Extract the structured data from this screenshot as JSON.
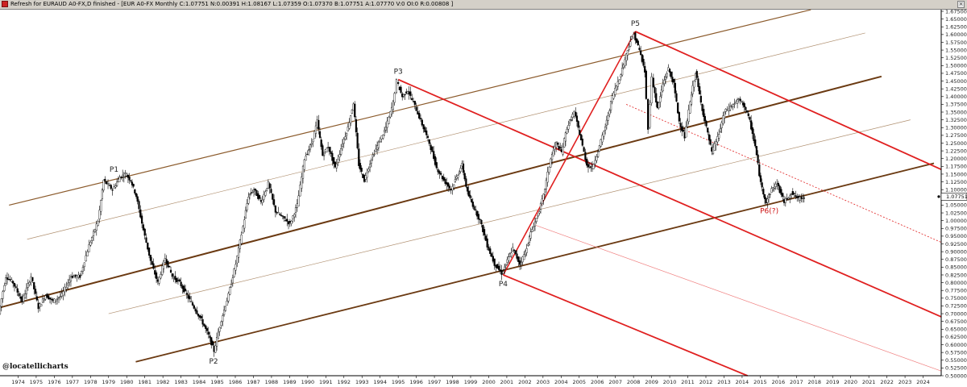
{
  "window": {
    "title": "Refresh for EURAUD A0-FX,D finished - [EUR A0-FX Monthly C:1.07751 N:0.00391 H:1.08167 L:1.07359 O:1.07370 B:1.07751 A:1.07770 V:0 OI:0 R:0.00808 ]"
  },
  "watermark": "@locatellicharts",
  "chart_data": {
    "type": "line",
    "symbol": "EUR A0-FX",
    "timeframe": "Monthly",
    "quote": {
      "C": 1.07751,
      "N": 0.00391,
      "H": 1.08167,
      "L": 1.07359,
      "O": 1.0737,
      "B": 1.07751,
      "A": 1.0777,
      "V": 0,
      "OI": 0,
      "R": 0.00808
    },
    "last_value_label": "1.07751",
    "xlim": [
      1973.0,
      2025.0
    ],
    "ylim": [
      0.5,
      1.675
    ],
    "x_ticks": [
      "1974",
      "1975",
      "1976",
      "1977",
      "1978",
      "1979",
      "1980",
      "1981",
      "1982",
      "1983",
      "1984",
      "1985",
      "1986",
      "1987",
      "1988",
      "1989",
      "1990",
      "1991",
      "1992",
      "1993",
      "1994",
      "1995",
      "1996",
      "1997",
      "1998",
      "1999",
      "2000",
      "2001",
      "2002",
      "2003",
      "2004",
      "2005",
      "2006",
      "2007",
      "2008",
      "2009",
      "2010",
      "2011",
      "2012",
      "2013",
      "2014",
      "2015",
      "2016",
      "2017",
      "2018",
      "2019",
      "2020",
      "2021",
      "2022",
      "2023",
      "2024"
    ],
    "y_ticks": [
      "1.67500",
      "1.65000",
      "1.62500",
      "1.60000",
      "1.57500",
      "1.55000",
      "1.52500",
      "1.50000",
      "1.47500",
      "1.45000",
      "1.42500",
      "1.40000",
      "1.37500",
      "1.35000",
      "1.32500",
      "1.30000",
      "1.27500",
      "1.25000",
      "1.22500",
      "1.20000",
      "1.17500",
      "1.15000",
      "1.12500",
      "1.10000",
      "1.07500",
      "1.05000",
      "1.02500",
      "1.00000",
      "0.97500",
      "0.95000",
      "0.92500",
      "0.90000",
      "0.87500",
      "0.85000",
      "0.82500",
      "0.80000",
      "0.77500",
      "0.75000",
      "0.72500",
      "0.70000",
      "0.67500",
      "0.65000",
      "0.62500",
      "0.60000",
      "0.57500",
      "0.55000",
      "0.52500",
      "0.50000"
    ],
    "pivots": [
      {
        "label": "P1",
        "x": 1979.3,
        "y": 1.14
      },
      {
        "label": "P2",
        "x": 1984.8,
        "y": 0.575
      },
      {
        "label": "P3",
        "x": 1995.0,
        "y": 1.455
      },
      {
        "label": "P4",
        "x": 2000.8,
        "y": 0.825
      },
      {
        "label": "P5",
        "x": 2008.1,
        "y": 1.61
      },
      {
        "label": "P6(?)",
        "x": 2015.5,
        "y": 1.06
      }
    ],
    "price_path": [
      [
        1973.0,
        0.7
      ],
      [
        1973.4,
        0.82
      ],
      [
        1973.8,
        0.8
      ],
      [
        1974.3,
        0.74
      ],
      [
        1974.8,
        0.82
      ],
      [
        1975.2,
        0.72
      ],
      [
        1975.6,
        0.76
      ],
      [
        1976.0,
        0.74
      ],
      [
        1976.5,
        0.76
      ],
      [
        1977.0,
        0.82
      ],
      [
        1977.5,
        0.82
      ],
      [
        1978.0,
        0.92
      ],
      [
        1978.5,
        1.0
      ],
      [
        1978.8,
        1.13
      ],
      [
        1979.3,
        1.1
      ],
      [
        1979.7,
        1.14
      ],
      [
        1980.0,
        1.15
      ],
      [
        1980.3,
        1.13
      ],
      [
        1980.6,
        1.08
      ],
      [
        1981.0,
        0.97
      ],
      [
        1981.4,
        0.87
      ],
      [
        1981.8,
        0.8
      ],
      [
        1982.2,
        0.88
      ],
      [
        1982.6,
        0.82
      ],
      [
        1983.0,
        0.8
      ],
      [
        1983.4,
        0.76
      ],
      [
        1983.8,
        0.72
      ],
      [
        1984.2,
        0.68
      ],
      [
        1984.6,
        0.63
      ],
      [
        1984.9,
        0.58
      ],
      [
        1985.3,
        0.68
      ],
      [
        1985.7,
        0.76
      ],
      [
        1986.1,
        0.86
      ],
      [
        1986.5,
        0.98
      ],
      [
        1986.8,
        1.08
      ],
      [
        1987.1,
        1.1
      ],
      [
        1987.5,
        1.06
      ],
      [
        1987.9,
        1.12
      ],
      [
        1988.3,
        1.03
      ],
      [
        1988.7,
        1.01
      ],
      [
        1989.1,
        0.99
      ],
      [
        1989.5,
        1.05
      ],
      [
        1989.9,
        1.2
      ],
      [
        1990.3,
        1.25
      ],
      [
        1990.6,
        1.32
      ],
      [
        1990.9,
        1.21
      ],
      [
        1991.2,
        1.24
      ],
      [
        1991.6,
        1.17
      ],
      [
        1992.0,
        1.25
      ],
      [
        1992.3,
        1.3
      ],
      [
        1992.6,
        1.38
      ],
      [
        1992.9,
        1.18
      ],
      [
        1993.2,
        1.13
      ],
      [
        1993.6,
        1.2
      ],
      [
        1994.0,
        1.25
      ],
      [
        1994.4,
        1.3
      ],
      [
        1994.8,
        1.38
      ],
      [
        1995.0,
        1.45
      ],
      [
        1995.3,
        1.4
      ],
      [
        1995.6,
        1.42
      ],
      [
        1996.0,
        1.37
      ],
      [
        1996.4,
        1.31
      ],
      [
        1996.8,
        1.25
      ],
      [
        1997.2,
        1.17
      ],
      [
        1997.6,
        1.13
      ],
      [
        1998.0,
        1.1
      ],
      [
        1998.3,
        1.14
      ],
      [
        1998.6,
        1.18
      ],
      [
        1998.9,
        1.09
      ],
      [
        1999.2,
        1.05
      ],
      [
        1999.6,
        1.0
      ],
      [
        2000.0,
        0.92
      ],
      [
        2000.4,
        0.86
      ],
      [
        2000.8,
        0.83
      ],
      [
        2001.1,
        0.87
      ],
      [
        2001.4,
        0.91
      ],
      [
        2001.8,
        0.86
      ],
      [
        2002.1,
        0.9
      ],
      [
        2002.4,
        0.96
      ],
      [
        2002.8,
        1.02
      ],
      [
        2003.1,
        1.08
      ],
      [
        2003.5,
        1.2
      ],
      [
        2003.8,
        1.25
      ],
      [
        2004.1,
        1.22
      ],
      [
        2004.4,
        1.3
      ],
      [
        2004.8,
        1.35
      ],
      [
        2005.1,
        1.28
      ],
      [
        2005.5,
        1.18
      ],
      [
        2005.8,
        1.17
      ],
      [
        2006.2,
        1.24
      ],
      [
        2006.6,
        1.32
      ],
      [
        2006.9,
        1.4
      ],
      [
        2007.3,
        1.46
      ],
      [
        2007.6,
        1.52
      ],
      [
        2007.9,
        1.58
      ],
      [
        2008.1,
        1.6
      ],
      [
        2008.4,
        1.55
      ],
      [
        2008.7,
        1.48
      ],
      [
        2008.9,
        1.3
      ],
      [
        2009.1,
        1.46
      ],
      [
        2009.4,
        1.36
      ],
      [
        2009.7,
        1.44
      ],
      [
        2010.0,
        1.49
      ],
      [
        2010.3,
        1.44
      ],
      [
        2010.6,
        1.32
      ],
      [
        2010.9,
        1.27
      ],
      [
        2011.2,
        1.38
      ],
      [
        2011.5,
        1.48
      ],
      [
        2011.8,
        1.38
      ],
      [
        2012.1,
        1.3
      ],
      [
        2012.4,
        1.22
      ],
      [
        2012.8,
        1.28
      ],
      [
        2013.1,
        1.35
      ],
      [
        2013.5,
        1.37
      ],
      [
        2013.9,
        1.39
      ],
      [
        2014.2,
        1.37
      ],
      [
        2014.5,
        1.32
      ],
      [
        2014.8,
        1.24
      ],
      [
        2015.1,
        1.12
      ],
      [
        2015.4,
        1.06
      ],
      [
        2015.7,
        1.1
      ],
      [
        2016.0,
        1.12
      ],
      [
        2016.4,
        1.06
      ],
      [
        2016.8,
        1.09
      ],
      [
        2017.2,
        1.07
      ],
      [
        2017.5,
        1.0775
      ]
    ],
    "lines": [
      {
        "role": "brown-upper",
        "color": "#8b5a2b",
        "width": 1.2,
        "from": [
          1973.5,
          1.05
        ],
        "to": [
          2017.8,
          1.68
        ]
      },
      {
        "role": "brown-upper-warning",
        "color": "#b09070",
        "width": 0.7,
        "from": [
          1974.5,
          0.94
        ],
        "to": [
          2020.8,
          1.605
        ]
      },
      {
        "role": "brown-median",
        "color": "#6b3a12",
        "width": 2.0,
        "from": [
          1973.0,
          0.72
        ],
        "to": [
          2021.7,
          1.465
        ]
      },
      {
        "role": "brown-lower-warning",
        "color": "#b09070",
        "width": 0.7,
        "from": [
          1979.0,
          0.7
        ],
        "to": [
          2023.3,
          1.325
        ]
      },
      {
        "role": "brown-lower",
        "color": "#6b3a12",
        "width": 1.8,
        "from": [
          1980.5,
          0.545
        ],
        "to": [
          2024.6,
          1.185
        ]
      },
      {
        "role": "red-p4-p5",
        "color": "#e02020",
        "width": 1.6,
        "from": [
          2000.8,
          0.825
        ],
        "to": [
          2008.1,
          1.61
        ]
      },
      {
        "role": "red-upper",
        "color": "#e02020",
        "width": 1.8,
        "from": [
          2008.1,
          1.61
        ],
        "to": [
          2025.0,
          1.165
        ]
      },
      {
        "role": "red-median",
        "color": "#e02020",
        "width": 1.8,
        "from": [
          1995.0,
          1.455
        ],
        "to": [
          2025.0,
          0.69
        ]
      },
      {
        "role": "red-lower",
        "color": "#e02020",
        "width": 1.8,
        "from": [
          2000.8,
          0.825
        ],
        "to": [
          2014.3,
          0.5
        ]
      },
      {
        "role": "red-lower-thin",
        "color": "#f08080",
        "width": 0.7,
        "from": [
          2002.6,
          0.985
        ],
        "to": [
          2025.0,
          0.515
        ]
      },
      {
        "role": "red-dotted",
        "color": "#e02020",
        "width": 0.8,
        "dashed": true,
        "from": [
          2007.6,
          1.375
        ],
        "to": [
          2025.0,
          0.93
        ]
      }
    ]
  }
}
